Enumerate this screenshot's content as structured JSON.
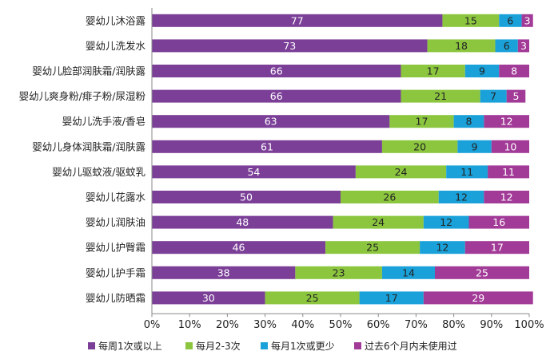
{
  "chart_data": {
    "type": "bar",
    "orientation": "horizontal",
    "stacked": true,
    "categories": [
      "婴幼儿沐浴露",
      "婴幼儿洗发水",
      "婴幼儿脸部润肤霜/润肤露",
      "婴幼儿爽身粉/痱子粉/尿湿粉",
      "婴幼儿洗手液/香皂",
      "婴幼儿身体润肤霜/润肤露",
      "婴幼儿驱蚊液/驱蚊乳",
      "婴幼儿花露水",
      "婴幼儿润肤油",
      "婴幼儿护臀霜",
      "婴幼儿护手霜",
      "婴幼儿防晒霜"
    ],
    "series": [
      {
        "name": "每周1次或以上",
        "color": "#7b3f98",
        "values": [
          77,
          73,
          66,
          66,
          63,
          61,
          54,
          50,
          48,
          46,
          38,
          30
        ]
      },
      {
        "name": "每月2-3次",
        "color": "#8cc63f",
        "values": [
          15,
          18,
          17,
          21,
          17,
          20,
          24,
          26,
          24,
          25,
          23,
          25
        ]
      },
      {
        "name": "每月1次或更少",
        "color": "#1ba1d9",
        "values": [
          6,
          6,
          9,
          7,
          8,
          9,
          11,
          12,
          12,
          12,
          14,
          17
        ]
      },
      {
        "name": "过去6个月内未使用过",
        "color": "#a23a97",
        "values": [
          3,
          3,
          8,
          5,
          12,
          10,
          11,
          12,
          16,
          17,
          25,
          29
        ]
      }
    ],
    "xaxis": {
      "ticks": [
        "0%",
        "10%",
        "20%",
        "30%",
        "40%",
        "50%",
        "60%",
        "70%",
        "80%",
        "90%",
        "100%"
      ],
      "range": [
        0,
        100
      ]
    },
    "legend_position": "bottom",
    "grid": false,
    "value_label_colors": [
      "#ffffff",
      "#222222",
      "#222222",
      "#ffffff"
    ]
  }
}
